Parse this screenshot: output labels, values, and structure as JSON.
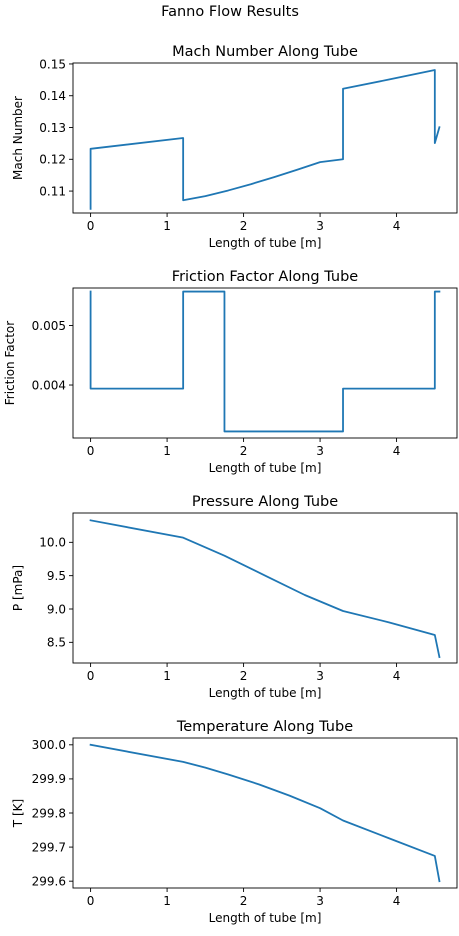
{
  "figure": {
    "suptitle": "Fanno Flow Results"
  },
  "colors": {
    "line": "#1f77b4",
    "axes": "#000000",
    "background": "#ffffff"
  },
  "chart_data": [
    {
      "type": "line",
      "title": "Mach Number Along Tube",
      "xlabel": "Length of tube [m]",
      "ylabel": "Mach Number",
      "xlim": [
        -0.23,
        4.79
      ],
      "ylim": [
        0.1031,
        0.1503
      ],
      "xticks": [
        0,
        1,
        2,
        3,
        4
      ],
      "xtick_labels": [
        "0",
        "1",
        "2",
        "3",
        "4"
      ],
      "yticks": [
        0.11,
        0.12,
        0.13,
        0.14,
        0.15
      ],
      "ytick_labels": [
        "0.11",
        "0.12",
        "0.13",
        "0.14",
        "0.15"
      ],
      "grid": false,
      "series": [
        {
          "x": [
            0,
            0,
            1.21,
            1.21,
            1.5,
            1.8,
            2.1,
            2.4,
            2.7,
            3.0,
            3.3,
            3.3,
            3.9,
            4.5,
            4.5,
            4.56
          ],
          "y": [
            0.1044,
            0.1233,
            0.1267,
            0.1071,
            0.1084,
            0.1102,
            0.1122,
            0.1144,
            0.1167,
            0.1191,
            0.12,
            0.1422,
            0.1451,
            0.1481,
            0.1251,
            0.1301
          ]
        }
      ]
    },
    {
      "type": "line",
      "title": "Friction Factor Along Tube",
      "xlabel": "Length of tube [m]",
      "ylabel": "Friction Factor",
      "xlim": [
        -0.23,
        4.79
      ],
      "ylim": [
        0.00311,
        0.00563
      ],
      "xticks": [
        0,
        1,
        2,
        3,
        4
      ],
      "xtick_labels": [
        "0",
        "1",
        "2",
        "3",
        "4"
      ],
      "yticks": [
        0.004,
        0.005
      ],
      "ytick_labels": [
        "0.004",
        "0.005"
      ],
      "grid": false,
      "series": [
        {
          "x": [
            0,
            0,
            1.21,
            1.21,
            1.75,
            1.75,
            3.3,
            3.3,
            4.5,
            4.5,
            4.56
          ],
          "y": [
            0.00557,
            0.00394,
            0.00394,
            0.00557,
            0.00557,
            0.00322,
            0.00322,
            0.00394,
            0.00394,
            0.00557,
            0.00557
          ]
        }
      ]
    },
    {
      "type": "line",
      "title": "Pressure Along Tube",
      "xlabel": "Length of tube [m]",
      "ylabel": "P [mPa]",
      "xlim": [
        -0.23,
        4.79
      ],
      "ylim": [
        8.19,
        10.44
      ],
      "xticks": [
        0,
        1,
        2,
        3,
        4
      ],
      "xtick_labels": [
        "0",
        "1",
        "2",
        "3",
        "4"
      ],
      "yticks": [
        8.5,
        9.0,
        9.5,
        10.0
      ],
      "ytick_labels": [
        "8.5",
        "9.0",
        "9.5",
        "10.0"
      ],
      "grid": false,
      "series": [
        {
          "x": [
            0,
            1.21,
            1.75,
            2.3,
            2.8,
            3.3,
            3.9,
            4.5,
            4.56
          ],
          "y": [
            10.33,
            10.07,
            9.8,
            9.49,
            9.21,
            8.97,
            8.8,
            8.61,
            8.28
          ]
        }
      ]
    },
    {
      "type": "line",
      "title": "Temperature Along Tube",
      "xlabel": "Length of tube [m]",
      "ylabel": "T [K]",
      "xlim": [
        -0.23,
        4.79
      ],
      "ylim": [
        299.58,
        300.02
      ],
      "xticks": [
        0,
        1,
        2,
        3,
        4
      ],
      "xtick_labels": [
        "0",
        "1",
        "2",
        "3",
        "4"
      ],
      "yticks": [
        299.6,
        299.7,
        299.8,
        299.9,
        300.0
      ],
      "ytick_labels": [
        "299.6",
        "299.7",
        "299.8",
        "299.9",
        "300.0"
      ],
      "grid": false,
      "series": [
        {
          "x": [
            0,
            1.21,
            1.5,
            1.8,
            2.2,
            2.6,
            3.0,
            3.3,
            3.9,
            4.5,
            4.56
          ],
          "y": [
            300.0,
            299.95,
            299.933,
            299.913,
            299.884,
            299.851,
            299.814,
            299.778,
            299.726,
            299.674,
            299.6
          ]
        }
      ]
    }
  ]
}
